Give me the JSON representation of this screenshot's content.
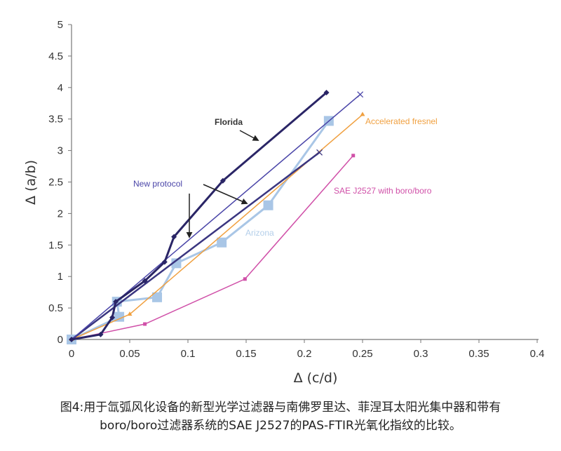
{
  "chart_data": {
    "type": "line",
    "xlabel": "Δ (c/d)",
    "ylabel": "Δ (a/b)",
    "xlim": [
      0,
      0.4
    ],
    "ylim": [
      0,
      5
    ],
    "xticks": [
      "0",
      "0.05",
      "0.1",
      "0.15",
      "0.2",
      "0.25",
      "0.3",
      "0.35",
      "0.4"
    ],
    "yticks": [
      "0",
      "0.5",
      "1",
      "1.5",
      "2",
      "2.5",
      "3",
      "3.5",
      "4",
      "4.5",
      "5"
    ],
    "grid": false,
    "series": [
      {
        "name": "Florida",
        "color": "#2a2566",
        "marker": "diamond",
        "x": [
          0,
          0.025,
          0.035,
          0.038,
          0.063,
          0.08,
          0.088,
          0.13,
          0.219
        ],
        "y": [
          0,
          0.08,
          0.35,
          0.6,
          0.93,
          1.23,
          1.63,
          2.52,
          3.92
        ]
      },
      {
        "name": "New protocol",
        "color": "#4a45a8",
        "marker": "x",
        "x": [
          0,
          0.248
        ],
        "y": [
          0,
          3.89
        ]
      },
      {
        "name": "New protocol",
        "color": "#3a3580",
        "marker": "x",
        "x": [
          0,
          0.213
        ],
        "y": [
          0,
          2.97
        ]
      },
      {
        "name": "Accelerated fresnel",
        "color": "#f0a040",
        "marker": "triangle",
        "x": [
          0,
          0.05,
          0.25
        ],
        "y": [
          0,
          0.4,
          3.57
        ]
      },
      {
        "name": "Arizona",
        "color": "#a9c6e6",
        "marker": "square",
        "x": [
          0,
          0.041,
          0.039,
          0.0735,
          0.09,
          0.129,
          0.169,
          0.221
        ],
        "y": [
          0,
          0.36,
          0.6,
          0.67,
          1.21,
          1.54,
          2.13,
          3.47
        ]
      },
      {
        "name": "SAE J2527 with boro/boro",
        "color": "#d050a8",
        "marker": "square",
        "x": [
          0,
          0.063,
          0.149,
          0.242
        ],
        "y": [
          0,
          0.245,
          0.96,
          2.92
        ]
      }
    ],
    "annotations": {
      "florida": "Florida",
      "new_protocol": "New protocol",
      "arizona": "Arizona",
      "accelerated": "Accelerated fresnel",
      "sae": "SAE J2527 with boro/boro"
    }
  },
  "caption": {
    "line1": "图4:用于氙弧风化设备的新型光学过滤器与南佛罗里达、菲涅耳太阳光集中器和带有",
    "line2": "boro/boro过滤器系统的SAE J2527的PAS-FTIR光氧化指纹的比较。"
  }
}
